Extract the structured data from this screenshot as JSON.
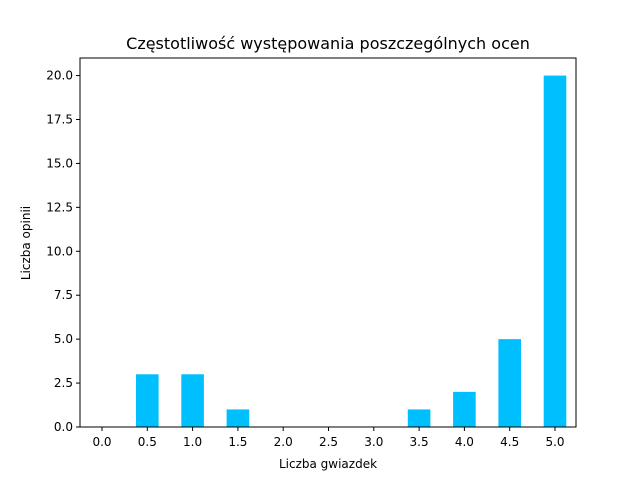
{
  "chart_data": {
    "type": "bar",
    "title": "Częstotliwość występowania poszczególnych ocen",
    "xlabel": "Liczba gwiazdek",
    "ylabel": "Liczba opinii",
    "categories": [
      "0.0",
      "0.5",
      "1.0",
      "1.5",
      "2.0",
      "2.5",
      "3.0",
      "3.5",
      "4.0",
      "4.5",
      "5.0"
    ],
    "values": [
      0,
      3,
      3,
      1,
      0,
      0,
      0,
      1,
      2,
      5,
      20
    ],
    "yticks": [
      "0.0",
      "2.5",
      "5.0",
      "7.5",
      "10.0",
      "12.5",
      "15.0",
      "17.5",
      "20.0"
    ],
    "ylim": [
      0,
      21
    ],
    "bar_color": "#00bfff",
    "grid": false
  }
}
